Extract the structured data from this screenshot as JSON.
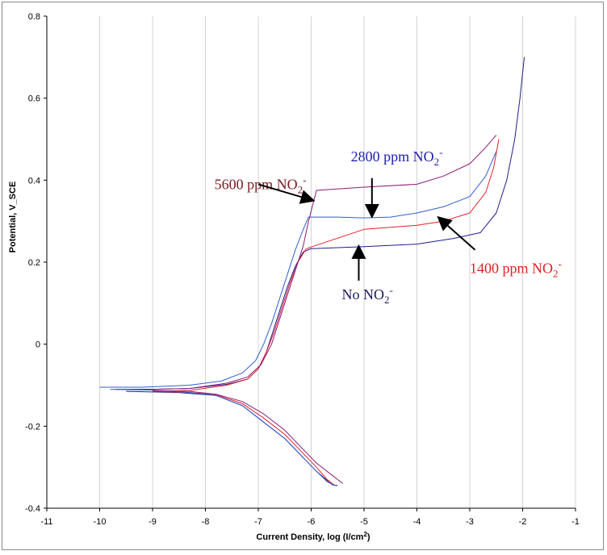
{
  "chart_data": {
    "type": "line",
    "title": "",
    "xlabel": "Current Density, log (I/cm",
    "xlabel_sup": "2",
    "xlabel_end": ")",
    "ylabel": "Potential, V_SCE",
    "xlim": [
      -11,
      -1
    ],
    "ylim": [
      -0.4,
      0.8
    ],
    "x_ticks": [
      "-11",
      "-10",
      "-9",
      "-8",
      "-7",
      "-6",
      "-5",
      "-4",
      "-3",
      "-2",
      "-1"
    ],
    "y_ticks": [
      "-0.4",
      "-0.2",
      "0",
      "0.2",
      "0.4",
      "0.6",
      "0.8"
    ],
    "grid": "vertical",
    "legend": "none",
    "colors": {
      "no_nitrite": "#1f1f8c",
      "n1400": "#e8202a",
      "n2800": "#2f5fd0",
      "n5600": "#8a1a7a",
      "arrow": "#000000"
    },
    "series": [
      {
        "key": "no_nitrite",
        "branches": [
          [
            [
              -9.7,
              -0.11
            ],
            [
              -9.0,
              -0.11
            ],
            [
              -8.3,
              -0.108
            ],
            [
              -7.6,
              -0.098
            ],
            [
              -7.2,
              -0.085
            ],
            [
              -7.0,
              -0.06
            ],
            [
              -6.85,
              -0.02
            ],
            [
              -6.75,
              0.02
            ],
            [
              -6.6,
              0.08
            ],
            [
              -6.45,
              0.14
            ],
            [
              -6.3,
              0.19
            ],
            [
              -6.15,
              0.225
            ],
            [
              -6.0,
              0.233
            ],
            [
              -5.0,
              0.238
            ],
            [
              -4.0,
              0.244
            ],
            [
              -3.3,
              0.258
            ],
            [
              -2.8,
              0.272
            ],
            [
              -2.5,
              0.32
            ],
            [
              -2.3,
              0.4
            ],
            [
              -2.15,
              0.5
            ],
            [
              -2.05,
              0.6
            ],
            [
              -1.97,
              0.7
            ]
          ],
          [
            [
              -9.5,
              -0.115
            ],
            [
              -8.5,
              -0.118
            ],
            [
              -7.8,
              -0.125
            ],
            [
              -7.3,
              -0.15
            ],
            [
              -6.9,
              -0.19
            ],
            [
              -6.5,
              -0.23
            ],
            [
              -6.2,
              -0.27
            ],
            [
              -5.9,
              -0.31
            ],
            [
              -5.6,
              -0.343
            ],
            [
              -5.5,
              -0.345
            ]
          ]
        ]
      },
      {
        "key": "n1400",
        "branches": [
          [
            [
              -9.0,
              -0.115
            ],
            [
              -8.3,
              -0.113
            ],
            [
              -7.6,
              -0.1
            ],
            [
              -7.2,
              -0.085
            ],
            [
              -7.0,
              -0.06
            ],
            [
              -6.85,
              -0.02
            ],
            [
              -6.7,
              0.03
            ],
            [
              -6.55,
              0.09
            ],
            [
              -6.4,
              0.15
            ],
            [
              -6.25,
              0.2
            ],
            [
              -6.1,
              0.232
            ],
            [
              -6.0,
              0.237
            ],
            [
              -5.0,
              0.28
            ],
            [
              -4.0,
              0.29
            ],
            [
              -3.5,
              0.3
            ],
            [
              -3.0,
              0.32
            ],
            [
              -2.7,
              0.37
            ],
            [
              -2.55,
              0.43
            ],
            [
              -2.45,
              0.5
            ]
          ],
          [
            [
              -9.0,
              -0.115
            ],
            [
              -8.3,
              -0.118
            ],
            [
              -7.8,
              -0.123
            ],
            [
              -7.3,
              -0.145
            ],
            [
              -6.9,
              -0.18
            ],
            [
              -6.5,
              -0.22
            ],
            [
              -6.2,
              -0.26
            ],
            [
              -5.9,
              -0.3
            ],
            [
              -5.7,
              -0.33
            ],
            [
              -5.55,
              -0.345
            ]
          ]
        ]
      },
      {
        "key": "n2800",
        "branches": [
          [
            [
              -10.0,
              -0.105
            ],
            [
              -9.2,
              -0.105
            ],
            [
              -8.3,
              -0.1
            ],
            [
              -7.7,
              -0.09
            ],
            [
              -7.3,
              -0.07
            ],
            [
              -7.05,
              -0.04
            ],
            [
              -6.9,
              0.0
            ],
            [
              -6.75,
              0.05
            ],
            [
              -6.6,
              0.11
            ],
            [
              -6.45,
              0.17
            ],
            [
              -6.3,
              0.23
            ],
            [
              -6.15,
              0.28
            ],
            [
              -6.05,
              0.31
            ],
            [
              -5.5,
              0.31
            ],
            [
              -5.0,
              0.308
            ],
            [
              -4.5,
              0.31
            ],
            [
              -4.0,
              0.32
            ],
            [
              -3.5,
              0.335
            ],
            [
              -3.0,
              0.36
            ],
            [
              -2.7,
              0.41
            ],
            [
              -2.5,
              0.47
            ]
          ],
          [
            [
              -9.8,
              -0.11
            ],
            [
              -9.0,
              -0.112
            ],
            [
              -8.3,
              -0.118
            ],
            [
              -7.8,
              -0.125
            ],
            [
              -7.3,
              -0.15
            ],
            [
              -6.9,
              -0.19
            ],
            [
              -6.5,
              -0.23
            ],
            [
              -6.2,
              -0.27
            ],
            [
              -5.9,
              -0.31
            ],
            [
              -5.7,
              -0.335
            ],
            [
              -5.55,
              -0.345
            ]
          ]
        ]
      },
      {
        "key": "n5600",
        "branches": [
          [
            [
              -9.0,
              -0.11
            ],
            [
              -8.3,
              -0.108
            ],
            [
              -7.6,
              -0.095
            ],
            [
              -7.2,
              -0.08
            ],
            [
              -6.95,
              -0.05
            ],
            [
              -6.75,
              0.0
            ],
            [
              -6.6,
              0.06
            ],
            [
              -6.45,
              0.12
            ],
            [
              -6.3,
              0.18
            ],
            [
              -6.15,
              0.24
            ],
            [
              -6.05,
              0.3
            ],
            [
              -5.95,
              0.35
            ],
            [
              -5.9,
              0.375
            ],
            [
              -5.0,
              0.383
            ],
            [
              -4.0,
              0.39
            ],
            [
              -3.5,
              0.41
            ],
            [
              -3.0,
              0.44
            ],
            [
              -2.7,
              0.48
            ],
            [
              -2.5,
              0.51
            ]
          ],
          [
            [
              -9.0,
              -0.113
            ],
            [
              -8.3,
              -0.115
            ],
            [
              -7.8,
              -0.122
            ],
            [
              -7.3,
              -0.14
            ],
            [
              -6.9,
              -0.17
            ],
            [
              -6.5,
              -0.21
            ],
            [
              -6.2,
              -0.25
            ],
            [
              -5.9,
              -0.29
            ],
            [
              -5.6,
              -0.32
            ],
            [
              -5.4,
              -0.34
            ]
          ]
        ]
      }
    ],
    "annotations": [
      {
        "key": "a5600",
        "text": "5600 ppm NO",
        "sub": "2",
        "sup": "-",
        "color": "#7a1a20",
        "label_at": [
          -7.83,
          0.378
        ],
        "arrow": [
          [
            -7.0,
            0.39
          ],
          [
            -5.95,
            0.35
          ]
        ]
      },
      {
        "key": "a2800",
        "text": "2800 ppm NO",
        "sub": "2",
        "sup": "-",
        "color": "#2020b0",
        "label_at": [
          -5.25,
          0.446
        ],
        "arrow": [
          [
            -4.85,
            0.405
          ],
          [
            -4.85,
            0.31
          ]
        ]
      },
      {
        "key": "a1400",
        "text": "1400 ppm NO",
        "sub": "2",
        "sup": "-",
        "color": "#e02020",
        "label_at": [
          -3.0,
          0.173
        ],
        "arrow": [
          [
            -2.9,
            0.23
          ],
          [
            -3.6,
            0.31
          ]
        ]
      },
      {
        "key": "anone",
        "text": "No NO",
        "sub": "2",
        "sup": "-",
        "color": "#1a1a60",
        "label_at": [
          -5.42,
          0.11
        ],
        "arrow": [
          [
            -5.1,
            0.155
          ],
          [
            -5.1,
            0.24
          ]
        ]
      }
    ]
  }
}
